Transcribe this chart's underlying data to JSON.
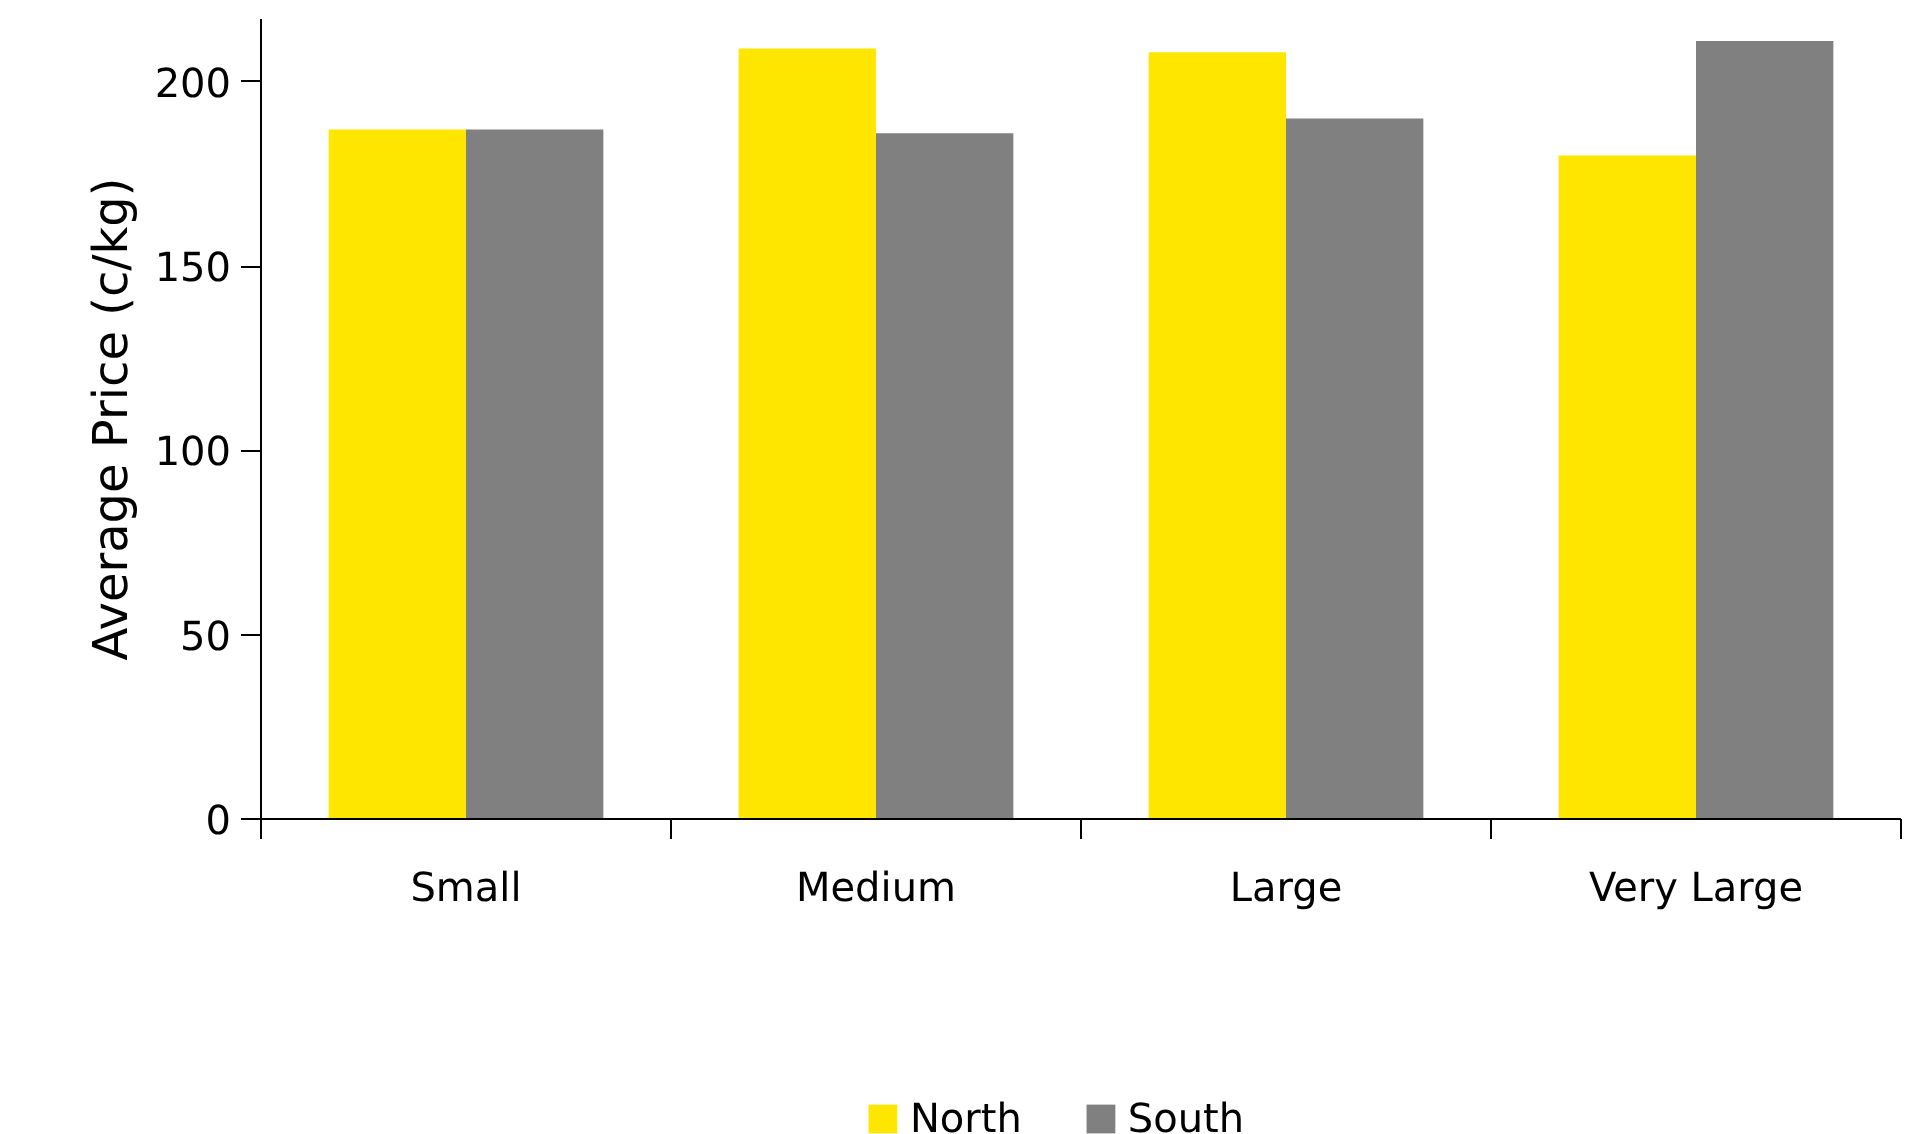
{
  "chart_data": {
    "type": "bar",
    "ylabel": "Average Price (c/kg)",
    "categories": [
      "Small",
      "Medium",
      "Large",
      "Very Large"
    ],
    "series": [
      {
        "name": "North",
        "color": "#ffe600",
        "values": [
          187,
          209,
          208,
          180
        ]
      },
      {
        "name": "South",
        "color": "#808080",
        "values": [
          187,
          186,
          190,
          211
        ]
      }
    ],
    "ylim": [
      0,
      217
    ],
    "yticks": [
      0,
      50,
      100,
      150,
      200
    ],
    "grid": false,
    "legend": "bottom"
  }
}
